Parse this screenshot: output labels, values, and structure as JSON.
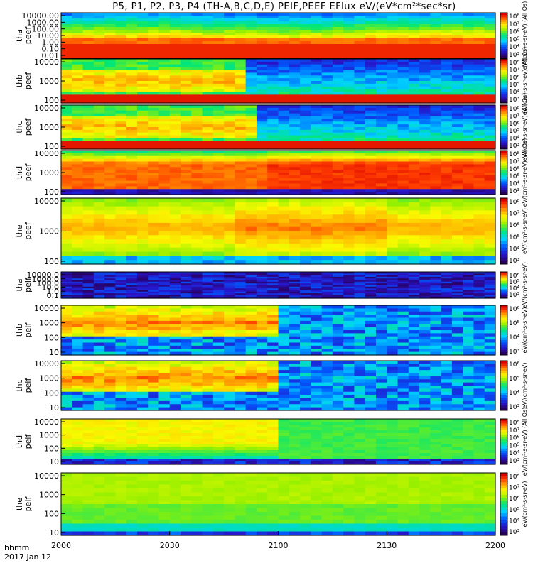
{
  "chart_data": {
    "type": "heatmap",
    "title": "P5, P1, P2, P3, P4 (TH-A,B,C,D,E) PEIF,PEEF EFlux eV/(eV*cm²*sec*sr)",
    "x_axis": {
      "range": [
        "2000",
        "2200"
      ],
      "ticks": [
        "2000",
        "2030",
        "2100",
        "2130",
        "2200"
      ],
      "label_line1": "hhmm",
      "label_line2": "2017 Jan 12"
    },
    "panels": [
      {
        "label1": "tha",
        "label2": "peef",
        "yticks": [
          "10000.00",
          "1000.00",
          "100.00",
          "10.00",
          "1.00",
          "0.10",
          "0.01"
        ],
        "cbticks": [
          "10⁸",
          "10⁷",
          "10⁶",
          "10⁵",
          "10⁴",
          "10³"
        ],
        "cblabel": "eV/(cm²-s-sr-eV) (All Qs)",
        "profile": "tha-e"
      },
      {
        "label1": "thb",
        "label2": "peef",
        "yticks": [
          "10000",
          "1000",
          "100"
        ],
        "cbticks": [
          "10⁸",
          "10⁷",
          "10⁶",
          "10⁵",
          "10⁴",
          "10³"
        ],
        "cblabel": "eV/(cm²-s-sr-eV) (All Qs)",
        "profile": "thb-e"
      },
      {
        "label1": "thc",
        "label2": "peef",
        "yticks": [
          "10000",
          "1000",
          "100"
        ],
        "cbticks": [
          "10⁸",
          "10⁷",
          "10⁶",
          "10⁵",
          "10⁴",
          "10³"
        ],
        "cblabel": "eV/(cm²-s-sr-eV) (All Qs)",
        "profile": "thc-e"
      },
      {
        "label1": "thd",
        "label2": "peef",
        "yticks": [
          "10000",
          "1000",
          "100"
        ],
        "cbticks": [
          "10⁸",
          "10⁷",
          "10⁶",
          "10⁵",
          "10⁴",
          "10³"
        ],
        "cblabel": "eV/(cm²-s-sr-eV) (All Qs)",
        "profile": "thd-e"
      },
      {
        "label1": "the",
        "label2": "peef",
        "yticks": [
          "10000",
          "1000",
          "100"
        ],
        "cbticks": [
          "10⁸",
          "10⁷",
          "10⁶",
          "10⁵",
          "10⁴",
          "10³"
        ],
        "cblabel": "eV/(cm²-s-sr-eV)",
        "profile": "the-e"
      },
      {
        "label1": "tha",
        "label2": "peif",
        "yticks": [
          "10000.0",
          "1000.0",
          "100.0",
          "10.0",
          "1.0",
          "0.1"
        ],
        "cbticks": [
          "10⁶",
          "10⁵",
          "10⁴",
          "10³"
        ],
        "cblabel": "eV/(cm²-s-sr-eV)",
        "profile": "tha-i"
      },
      {
        "label1": "thb",
        "label2": "peif",
        "yticks": [
          "10000",
          "1000",
          "100",
          "10"
        ],
        "cbticks": [
          "10⁶",
          "10⁵",
          "10⁴",
          "10³"
        ],
        "cblabel": "eV/(cm²-s-sr-eV)",
        "profile": "thb-i"
      },
      {
        "label1": "thc",
        "label2": "peif",
        "yticks": [
          "10000",
          "1000",
          "100",
          "10"
        ],
        "cbticks": [
          "10⁶",
          "10⁵",
          "10⁴",
          "10³"
        ],
        "cblabel": "eV/(cm²-s-sr-eV)",
        "profile": "thc-i"
      },
      {
        "label1": "thd",
        "label2": "peif",
        "yticks": [
          "10000",
          "1000",
          "100",
          "10"
        ],
        "cbticks": [
          "10⁸",
          "10⁷",
          "10⁶",
          "10⁵",
          "10⁴",
          "10³"
        ],
        "cblabel": "eV/(cm²-s-sr-eV) (All Qs)",
        "profile": "thd-i"
      },
      {
        "label1": "the",
        "label2": "peif",
        "yticks": [
          "10000",
          "1000",
          "100",
          "10"
        ],
        "cbticks": [
          "10⁸",
          "10⁷",
          "10⁶",
          "10⁵",
          "10⁴",
          "10³"
        ],
        "cblabel": "eV/(cm²-s-sr-eV)",
        "profile": "the-i"
      }
    ]
  }
}
